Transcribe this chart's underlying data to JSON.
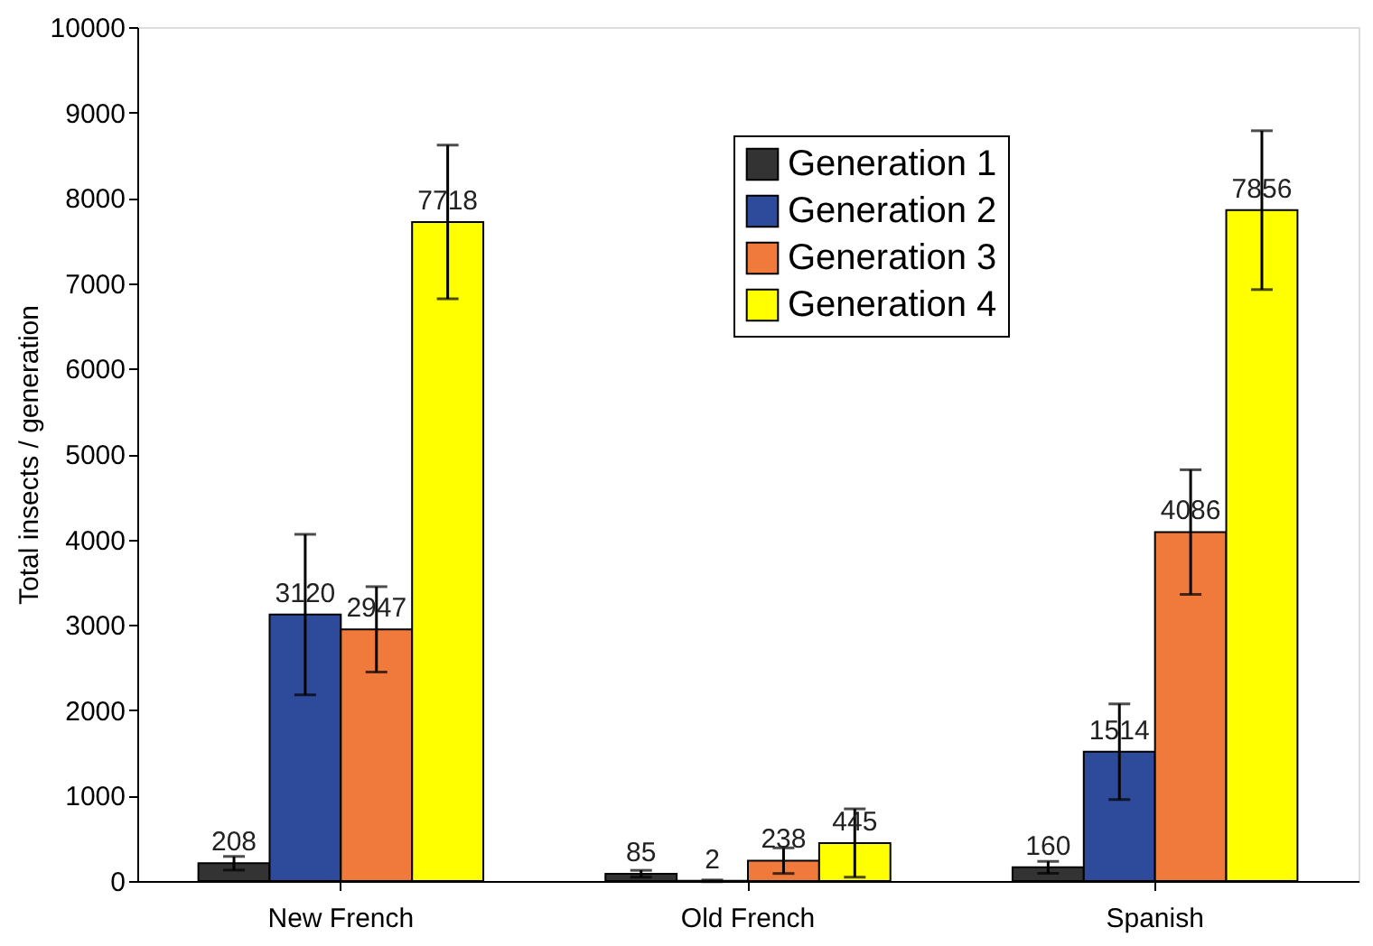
{
  "chart_data": {
    "type": "bar",
    "ylabel": "Total insects / generation",
    "categories": [
      "New French",
      "Old French",
      "Spanish"
    ],
    "series": [
      {
        "name": "Generation 1",
        "color": "#333333",
        "values": [
          208,
          85,
          160
        ],
        "errors": [
          80,
          40,
          70
        ]
      },
      {
        "name": "Generation 2",
        "color": "#2e4b9b",
        "values": [
          3120,
          2,
          1514
        ],
        "errors": [
          940,
          10,
          560
        ]
      },
      {
        "name": "Generation 3",
        "color": "#f07a3c",
        "values": [
          2947,
          238,
          4086
        ],
        "errors": [
          500,
          150,
          730
        ]
      },
      {
        "name": "Generation 4",
        "color": "#ffff00",
        "values": [
          7718,
          445,
          7856
        ],
        "errors": [
          900,
          400,
          930
        ]
      }
    ],
    "ylim": [
      0,
      10000
    ],
    "yticks": [
      0,
      1000,
      2000,
      3000,
      4000,
      5000,
      6000,
      7000,
      8000,
      9000,
      10000
    ],
    "data_labels": true,
    "grid": false,
    "legend": "top right"
  }
}
